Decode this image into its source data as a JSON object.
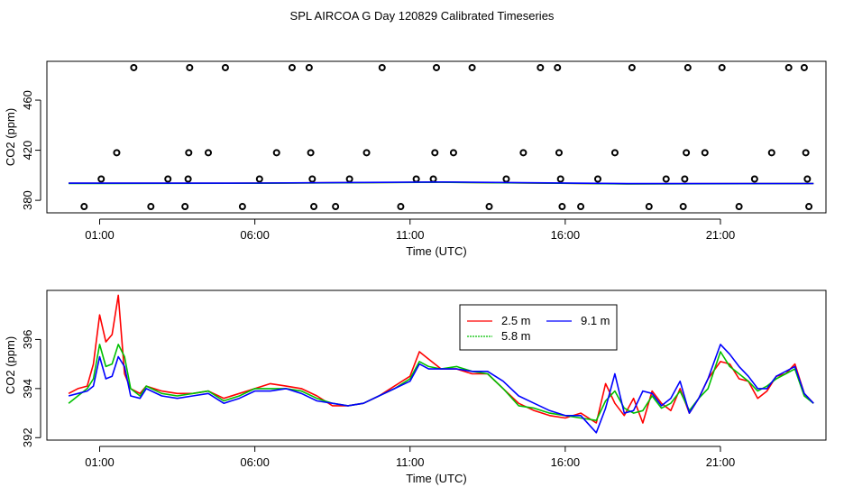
{
  "figure_title": "SPL AIRCOA G  Day 120829  Calibrated Timeseries",
  "chart_data": [
    {
      "type": "scatter+line",
      "title": "",
      "xlabel": "Time (UTC)",
      "ylabel": "CO2 (ppm)",
      "xlim": [
        -0.7,
        24.4
      ],
      "ylim": [
        370,
        491
      ],
      "x_ticks": [
        1,
        6,
        11,
        16,
        21
      ],
      "x_tick_labels": [
        "01:00",
        "06:00",
        "11:00",
        "16:00",
        "21:00"
      ],
      "y_ticks": [
        380,
        420,
        460
      ],
      "y_tick_labels": [
        "380",
        "420",
        "460"
      ],
      "marker_color": "#000000",
      "markers": [
        {
          "x": 0.5,
          "y": 375
        },
        {
          "x": 1.05,
          "y": 397
        },
        {
          "x": 1.55,
          "y": 418
        },
        {
          "x": 2.1,
          "y": 486
        },
        {
          "x": 2.65,
          "y": 375
        },
        {
          "x": 3.2,
          "y": 397
        },
        {
          "x": 3.75,
          "y": 375
        },
        {
          "x": 3.85,
          "y": 397
        },
        {
          "x": 3.87,
          "y": 418
        },
        {
          "x": 3.9,
          "y": 486
        },
        {
          "x": 4.5,
          "y": 418
        },
        {
          "x": 5.05,
          "y": 486
        },
        {
          "x": 5.6,
          "y": 375
        },
        {
          "x": 6.15,
          "y": 397
        },
        {
          "x": 6.7,
          "y": 418
        },
        {
          "x": 7.2,
          "y": 486
        },
        {
          "x": 7.75,
          "y": 486
        },
        {
          "x": 7.8,
          "y": 418
        },
        {
          "x": 7.85,
          "y": 397
        },
        {
          "x": 7.9,
          "y": 375
        },
        {
          "x": 8.6,
          "y": 375
        },
        {
          "x": 9.05,
          "y": 397
        },
        {
          "x": 9.6,
          "y": 418
        },
        {
          "x": 10.1,
          "y": 486
        },
        {
          "x": 10.7,
          "y": 375
        },
        {
          "x": 11.2,
          "y": 397
        },
        {
          "x": 11.75,
          "y": 397
        },
        {
          "x": 11.8,
          "y": 418
        },
        {
          "x": 11.85,
          "y": 486
        },
        {
          "x": 12.4,
          "y": 418
        },
        {
          "x": 13.0,
          "y": 486
        },
        {
          "x": 13.55,
          "y": 375
        },
        {
          "x": 14.1,
          "y": 397
        },
        {
          "x": 14.65,
          "y": 418
        },
        {
          "x": 15.2,
          "y": 486
        },
        {
          "x": 15.75,
          "y": 486
        },
        {
          "x": 15.8,
          "y": 418
        },
        {
          "x": 15.85,
          "y": 397
        },
        {
          "x": 15.9,
          "y": 375
        },
        {
          "x": 16.5,
          "y": 375
        },
        {
          "x": 17.05,
          "y": 397
        },
        {
          "x": 17.6,
          "y": 418
        },
        {
          "x": 18.15,
          "y": 486
        },
        {
          "x": 18.7,
          "y": 375
        },
        {
          "x": 19.25,
          "y": 397
        },
        {
          "x": 19.8,
          "y": 375
        },
        {
          "x": 19.85,
          "y": 397
        },
        {
          "x": 19.9,
          "y": 418
        },
        {
          "x": 19.95,
          "y": 486
        },
        {
          "x": 20.5,
          "y": 418
        },
        {
          "x": 21.05,
          "y": 486
        },
        {
          "x": 21.6,
          "y": 375
        },
        {
          "x": 22.1,
          "y": 397
        },
        {
          "x": 22.65,
          "y": 418
        },
        {
          "x": 23.2,
          "y": 486
        },
        {
          "x": 23.7,
          "y": 486
        },
        {
          "x": 23.75,
          "y": 418
        },
        {
          "x": 23.8,
          "y": 397
        },
        {
          "x": 23.85,
          "y": 375
        }
      ],
      "series": [
        {
          "name": "2.5 m",
          "color": "#ff0000",
          "x": [
            0,
            6,
            12,
            18,
            24
          ],
          "y": [
            393.6,
            393.7,
            394.5,
            393.2,
            393.4
          ]
        },
        {
          "name": "5.8 m",
          "color": "#00c000",
          "x": [
            0,
            6,
            12,
            18,
            24
          ],
          "y": [
            393.4,
            393.6,
            394.4,
            393.1,
            393.4
          ]
        },
        {
          "name": "9.1 m",
          "color": "#0000ff",
          "x": [
            0,
            6,
            12,
            18,
            24
          ],
          "y": [
            393.7,
            393.8,
            394.6,
            393.3,
            393.4
          ]
        }
      ]
    },
    {
      "type": "line",
      "title": "",
      "xlabel": "Time (UTC)",
      "ylabel": "CO2 (ppm)",
      "xlim": [
        -0.7,
        24.4
      ],
      "ylim": [
        391.9,
        398.0
      ],
      "x_ticks": [
        1,
        6,
        11,
        16,
        21
      ],
      "x_tick_labels": [
        "01:00",
        "06:00",
        "11:00",
        "16:00",
        "21:00"
      ],
      "y_ticks": [
        392,
        394,
        396
      ],
      "y_tick_labels": [
        "392",
        "394",
        "396"
      ],
      "legend": {
        "placement": "top-center",
        "entries": [
          "2.5 m",
          "9.1 m",
          "5.8 m"
        ]
      },
      "series": [
        {
          "name": "2.5 m",
          "color": "#ff0000",
          "x": [
            0,
            0.3,
            0.6,
            0.8,
            1.0,
            1.2,
            1.4,
            1.6,
            1.8,
            2.0,
            2.3,
            2.5,
            3.0,
            3.5,
            4.0,
            4.5,
            5.0,
            5.5,
            6.0,
            6.5,
            7.0,
            7.5,
            8.0,
            8.5,
            9.0,
            9.5,
            10.0,
            10.5,
            11.0,
            11.3,
            11.6,
            12.0,
            12.5,
            13.0,
            13.5,
            14.0,
            14.5,
            15.0,
            15.5,
            16.0,
            16.5,
            17.0,
            17.3,
            17.6,
            17.9,
            18.2,
            18.5,
            18.8,
            19.1,
            19.4,
            19.7,
            20.0,
            20.3,
            20.6,
            21.0,
            21.3,
            21.6,
            21.9,
            22.2,
            22.5,
            22.8,
            23.1,
            23.4,
            23.7,
            24.0
          ],
          "y": [
            393.8,
            394.0,
            394.1,
            395.0,
            397.0,
            395.9,
            396.2,
            397.8,
            394.6,
            394.0,
            393.8,
            394.1,
            393.9,
            393.8,
            393.8,
            393.9,
            393.6,
            393.8,
            394.0,
            394.2,
            394.1,
            394.0,
            393.7,
            393.3,
            393.3,
            393.4,
            393.7,
            394.1,
            394.5,
            395.5,
            395.2,
            394.8,
            394.8,
            394.6,
            394.6,
            394.0,
            393.4,
            393.1,
            392.9,
            392.8,
            393.0,
            392.6,
            394.2,
            393.4,
            392.9,
            393.6,
            392.6,
            393.9,
            393.4,
            393.1,
            394.0,
            393.0,
            393.6,
            394.4,
            395.1,
            395.0,
            394.4,
            394.3,
            393.6,
            393.9,
            394.5,
            394.6,
            395.0,
            393.8,
            393.4
          ]
        },
        {
          "name": "5.8 m",
          "color": "#00c000",
          "x": [
            0,
            0.3,
            0.6,
            0.8,
            1.0,
            1.2,
            1.4,
            1.6,
            1.8,
            2.0,
            2.3,
            2.5,
            3.0,
            3.5,
            4.0,
            4.5,
            5.0,
            5.5,
            6.0,
            6.5,
            7.0,
            7.5,
            8.0,
            8.5,
            9.0,
            9.5,
            10.0,
            10.5,
            11.0,
            11.3,
            11.6,
            12.0,
            12.5,
            13.0,
            13.5,
            14.0,
            14.5,
            15.0,
            15.5,
            16.0,
            16.5,
            17.0,
            17.3,
            17.6,
            17.9,
            18.2,
            18.5,
            18.8,
            19.1,
            19.4,
            19.7,
            20.0,
            20.3,
            20.6,
            21.0,
            21.3,
            21.6,
            21.9,
            22.2,
            22.5,
            22.8,
            23.1,
            23.4,
            23.7,
            24.0
          ],
          "y": [
            393.4,
            393.7,
            394.0,
            394.4,
            395.8,
            394.9,
            395.0,
            395.8,
            395.3,
            394.0,
            393.7,
            394.1,
            393.8,
            393.7,
            393.8,
            393.9,
            393.5,
            393.7,
            394.0,
            394.0,
            394.0,
            393.9,
            393.6,
            393.4,
            393.3,
            393.4,
            393.7,
            394.0,
            394.4,
            395.1,
            394.9,
            394.8,
            394.9,
            394.7,
            394.6,
            394.0,
            393.3,
            393.2,
            393.0,
            392.9,
            392.8,
            392.7,
            393.5,
            393.9,
            393.2,
            393.0,
            393.1,
            393.7,
            393.2,
            393.4,
            393.9,
            393.1,
            393.6,
            394.0,
            395.5,
            394.9,
            394.6,
            394.3,
            393.9,
            394.1,
            394.4,
            394.6,
            394.8,
            393.7,
            393.4
          ]
        },
        {
          "name": "9.1 m",
          "color": "#0000ff",
          "x": [
            0,
            0.3,
            0.6,
            0.8,
            1.0,
            1.2,
            1.4,
            1.6,
            1.8,
            2.0,
            2.3,
            2.5,
            3.0,
            3.5,
            4.0,
            4.5,
            5.0,
            5.5,
            6.0,
            6.5,
            7.0,
            7.5,
            8.0,
            8.5,
            9.0,
            9.5,
            10.0,
            10.5,
            11.0,
            11.3,
            11.6,
            12.0,
            12.5,
            13.0,
            13.5,
            14.0,
            14.5,
            15.0,
            15.5,
            16.0,
            16.5,
            17.0,
            17.3,
            17.6,
            17.9,
            18.2,
            18.5,
            18.8,
            19.1,
            19.4,
            19.7,
            20.0,
            20.3,
            20.6,
            21.0,
            21.3,
            21.6,
            21.9,
            22.2,
            22.5,
            22.8,
            23.1,
            23.4,
            23.7,
            24.0
          ],
          "y": [
            393.7,
            393.8,
            393.9,
            394.1,
            395.3,
            394.4,
            394.5,
            395.3,
            394.9,
            393.7,
            393.6,
            394.0,
            393.7,
            393.6,
            393.7,
            393.8,
            393.4,
            393.6,
            393.9,
            393.9,
            394.0,
            393.8,
            393.5,
            393.4,
            393.3,
            393.4,
            393.7,
            394.0,
            394.3,
            395.0,
            394.8,
            394.8,
            394.8,
            394.7,
            394.7,
            394.3,
            393.7,
            393.4,
            393.1,
            392.9,
            392.9,
            392.2,
            393.2,
            394.6,
            393.0,
            393.1,
            393.9,
            393.8,
            393.3,
            393.6,
            394.3,
            393.0,
            393.6,
            394.4,
            395.8,
            395.4,
            394.9,
            394.5,
            394.0,
            394.0,
            394.5,
            394.7,
            394.9,
            393.8,
            393.4
          ]
        }
      ]
    }
  ]
}
